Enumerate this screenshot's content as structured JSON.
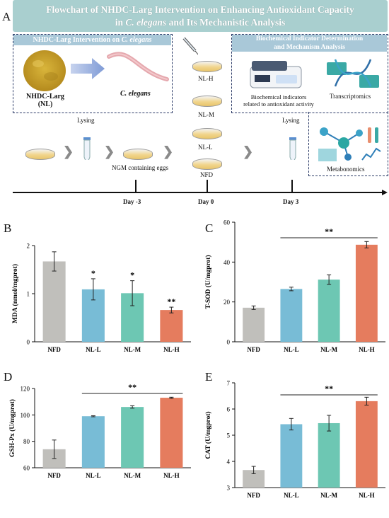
{
  "header": {
    "line1": "Flowchart of NHDC-Larg Intervention on Enhancing Antioxidant Capacity",
    "line2_pre": "in ",
    "line2_italic": "C. elegans",
    "line2_post": " and Its Mechanistic Analysis"
  },
  "panel_letters": {
    "a": "A",
    "b": "B",
    "c": "C",
    "d": "D",
    "e": "E"
  },
  "flowchart": {
    "left_box_title_pre": "NHDC-Larg Intervention on ",
    "left_box_title_italic": "C. elegans",
    "nhdc_label_line1": "NHDC-Larg",
    "nhdc_label_line2": "(NL)",
    "celegans_label": "C. elegans",
    "right_box_title_line1": "Biochemical Indicator Determination",
    "right_box_title_line2": "and Mechanism Analysis",
    "biochem_label_line1": "Biochemical indicators",
    "biochem_label_line2": "related to antioxidant activity",
    "transcriptomics": "Transcriptomics",
    "metabonomics": "Metabonomics",
    "groups": [
      "NL-H",
      "NL-M",
      "NL-L",
      "NFD"
    ],
    "lysing_1": "Lysing",
    "lysing_2": "Lysing",
    "ngm_label": "NGM containing eggs",
    "timeline": [
      "Day -3",
      "Day 0",
      "Day 3"
    ],
    "colors": {
      "header_bg": "#a9cfcf",
      "box_title_bg": "#a9c8d8",
      "dash": "#2b3a67"
    }
  },
  "chart_data": [
    {
      "type": "bar",
      "panel": "B",
      "categories": [
        "NFD",
        "NL-L",
        "NL-M",
        "NL-H"
      ],
      "values": [
        1.67,
        1.09,
        1.01,
        0.66
      ],
      "errors": [
        0.2,
        0.22,
        0.26,
        0.06
      ],
      "annotations": [
        "",
        "*",
        "*",
        "**"
      ],
      "ylabel": "MDA (nmol/mgprot)",
      "ylim": [
        0,
        2
      ],
      "yticks": [
        0,
        1,
        2
      ],
      "colors": [
        "#c0bfbb",
        "#78bcd6",
        "#6dc7b3",
        "#e57c5e"
      ]
    },
    {
      "type": "bar",
      "panel": "C",
      "categories": [
        "NFD",
        "NL-L",
        "NL-M",
        "NL-H"
      ],
      "values": [
        17.1,
        26.5,
        31.2,
        48.7
      ],
      "errors": [
        0.9,
        0.9,
        2.4,
        1.6
      ],
      "bracket": "**",
      "ylabel": "T-SOD (U/mgprot)",
      "ylim": [
        0,
        60
      ],
      "yticks": [
        0,
        20,
        40,
        60
      ],
      "colors": [
        "#c0bfbb",
        "#78bcd6",
        "#6dc7b3",
        "#e57c5e"
      ]
    },
    {
      "type": "bar",
      "panel": "D",
      "categories": [
        "NFD",
        "NL-L",
        "NL-M",
        "NL-H"
      ],
      "values": [
        74,
        99,
        106,
        113
      ],
      "errors": [
        7,
        0.4,
        0.9,
        0.4
      ],
      "bracket": "**",
      "ylabel": "GSH-Px (U/mgprot)",
      "ylim": [
        60,
        120
      ],
      "yticks": [
        60,
        80,
        100,
        120
      ],
      "colors": [
        "#c0bfbb",
        "#78bcd6",
        "#6dc7b3",
        "#e57c5e"
      ]
    },
    {
      "type": "bar",
      "panel": "E",
      "categories": [
        "NFD",
        "NL-L",
        "NL-M",
        "NL-H"
      ],
      "values": [
        3.67,
        5.42,
        5.46,
        6.3
      ],
      "errors": [
        0.14,
        0.22,
        0.3,
        0.15
      ],
      "bracket": "**",
      "ylabel": "CAT (U/mgprot)",
      "ylim": [
        3,
        7
      ],
      "yticks": [
        3,
        4,
        5,
        6,
        7
      ],
      "colors": [
        "#c0bfbb",
        "#78bcd6",
        "#6dc7b3",
        "#e57c5e"
      ]
    }
  ]
}
